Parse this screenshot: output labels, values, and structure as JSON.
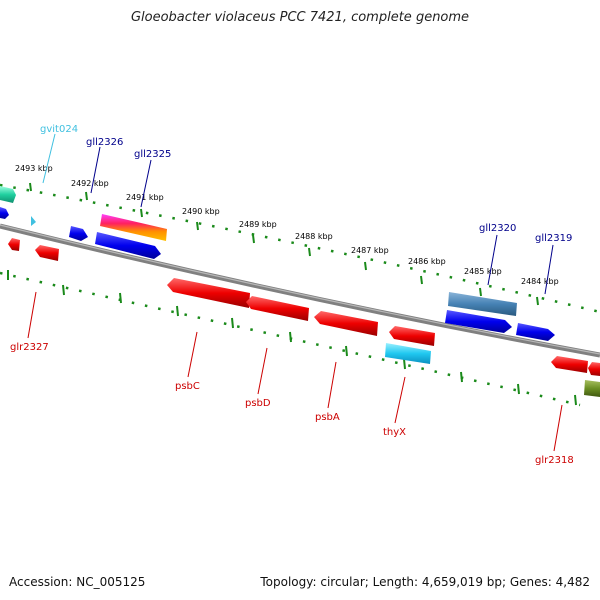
{
  "title": "Gloeobacter violaceus PCC 7421, complete genome",
  "footer": {
    "accession": "Accession: NC_005125",
    "summary": "Topology: circular; Length: 4,659,019 bp; Genes: 4,482"
  },
  "colors": {
    "forward_label": "#00008b",
    "reverse_label": "#cc0000",
    "rna_label": "#40c0e0",
    "backbone": "#808080",
    "tick": "#1a8a1a"
  },
  "scale": {
    "ticks": [
      "2493 kbp",
      "2492 kbp",
      "2491 kbp",
      "2490 kbp",
      "2489 kbp",
      "2488 kbp",
      "2487 kbp",
      "2486 kbp",
      "2485 kbp",
      "2484 kbp"
    ]
  },
  "genes": {
    "forward": [
      "gvit024",
      "gll2326",
      "gll2325",
      "gll2320",
      "gll2319"
    ],
    "reverse": [
      "glr2327",
      "psbC",
      "psbD",
      "psbA",
      "thyX",
      "glr2318"
    ]
  }
}
